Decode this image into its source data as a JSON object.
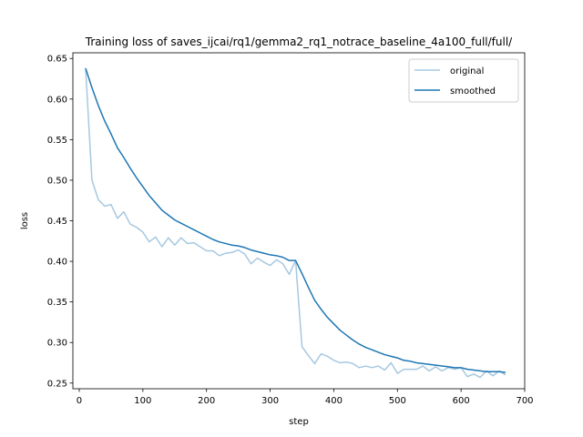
{
  "chart_data": {
    "type": "line",
    "title": "Training loss of saves_ijcai/rq1/gemma2_rq1_notrace_baseline_4a100_full/full/",
    "xlabel": "step",
    "ylabel": "loss",
    "xlim": [
      -10,
      700
    ],
    "ylim": [
      0.243,
      0.657
    ],
    "xticks": [
      0,
      100,
      200,
      300,
      400,
      500,
      600,
      700
    ],
    "yticks": [
      0.25,
      0.3,
      0.35,
      0.4,
      0.45,
      0.5,
      0.55,
      0.6,
      0.65
    ],
    "xtick_labels": [
      "0",
      "100",
      "200",
      "300",
      "400",
      "500",
      "600",
      "700"
    ],
    "ytick_labels": [
      "0.25",
      "0.30",
      "0.35",
      "0.40",
      "0.45",
      "0.50",
      "0.55",
      "0.60",
      "0.65"
    ],
    "grid": false,
    "legend_position": "top-right",
    "series": [
      {
        "name": "original",
        "color": "#a6c8e0",
        "x": [
          10,
          20,
          30,
          40,
          50,
          60,
          70,
          80,
          90,
          100,
          110,
          120,
          130,
          140,
          150,
          160,
          170,
          180,
          190,
          200,
          210,
          220,
          230,
          240,
          250,
          260,
          270,
          280,
          290,
          300,
          310,
          320,
          330,
          340,
          350,
          360,
          370,
          380,
          390,
          400,
          410,
          420,
          430,
          440,
          450,
          460,
          470,
          480,
          490,
          500,
          510,
          520,
          530,
          540,
          550,
          560,
          570,
          580,
          590,
          600,
          610,
          620,
          630,
          640,
          650,
          660,
          670
        ],
        "y": [
          0.638,
          0.5,
          0.476,
          0.468,
          0.47,
          0.453,
          0.461,
          0.446,
          0.442,
          0.436,
          0.424,
          0.43,
          0.418,
          0.429,
          0.42,
          0.429,
          0.422,
          0.423,
          0.418,
          0.413,
          0.413,
          0.407,
          0.41,
          0.411,
          0.414,
          0.409,
          0.397,
          0.404,
          0.399,
          0.395,
          0.402,
          0.397,
          0.384,
          0.401,
          0.295,
          0.284,
          0.274,
          0.286,
          0.283,
          0.278,
          0.275,
          0.276,
          0.274,
          0.269,
          0.271,
          0.269,
          0.271,
          0.266,
          0.275,
          0.262,
          0.267,
          0.267,
          0.267,
          0.271,
          0.265,
          0.27,
          0.265,
          0.269,
          0.267,
          0.269,
          0.258,
          0.261,
          0.257,
          0.265,
          0.259,
          0.265,
          0.26
        ]
      },
      {
        "name": "smoothed",
        "color": "#1f77b4",
        "x": [
          10,
          20,
          30,
          40,
          50,
          60,
          70,
          80,
          90,
          100,
          110,
          120,
          130,
          140,
          150,
          160,
          170,
          180,
          190,
          200,
          210,
          220,
          230,
          240,
          250,
          260,
          270,
          280,
          290,
          300,
          310,
          320,
          330,
          340,
          350,
          360,
          370,
          380,
          390,
          400,
          410,
          420,
          430,
          440,
          450,
          460,
          470,
          480,
          490,
          500,
          510,
          520,
          530,
          540,
          550,
          560,
          570,
          580,
          590,
          600,
          610,
          620,
          630,
          640,
          650,
          660,
          670
        ],
        "y": [
          0.638,
          0.614,
          0.592,
          0.573,
          0.557,
          0.54,
          0.528,
          0.515,
          0.503,
          0.492,
          0.481,
          0.472,
          0.463,
          0.457,
          0.451,
          0.447,
          0.443,
          0.439,
          0.435,
          0.431,
          0.427,
          0.424,
          0.422,
          0.42,
          0.419,
          0.417,
          0.414,
          0.412,
          0.41,
          0.408,
          0.407,
          0.405,
          0.401,
          0.401,
          0.385,
          0.368,
          0.352,
          0.341,
          0.331,
          0.323,
          0.315,
          0.309,
          0.303,
          0.298,
          0.294,
          0.291,
          0.288,
          0.285,
          0.283,
          0.281,
          0.278,
          0.277,
          0.275,
          0.274,
          0.273,
          0.272,
          0.271,
          0.27,
          0.269,
          0.269,
          0.267,
          0.266,
          0.265,
          0.264,
          0.264,
          0.264,
          0.263
        ]
      }
    ]
  }
}
